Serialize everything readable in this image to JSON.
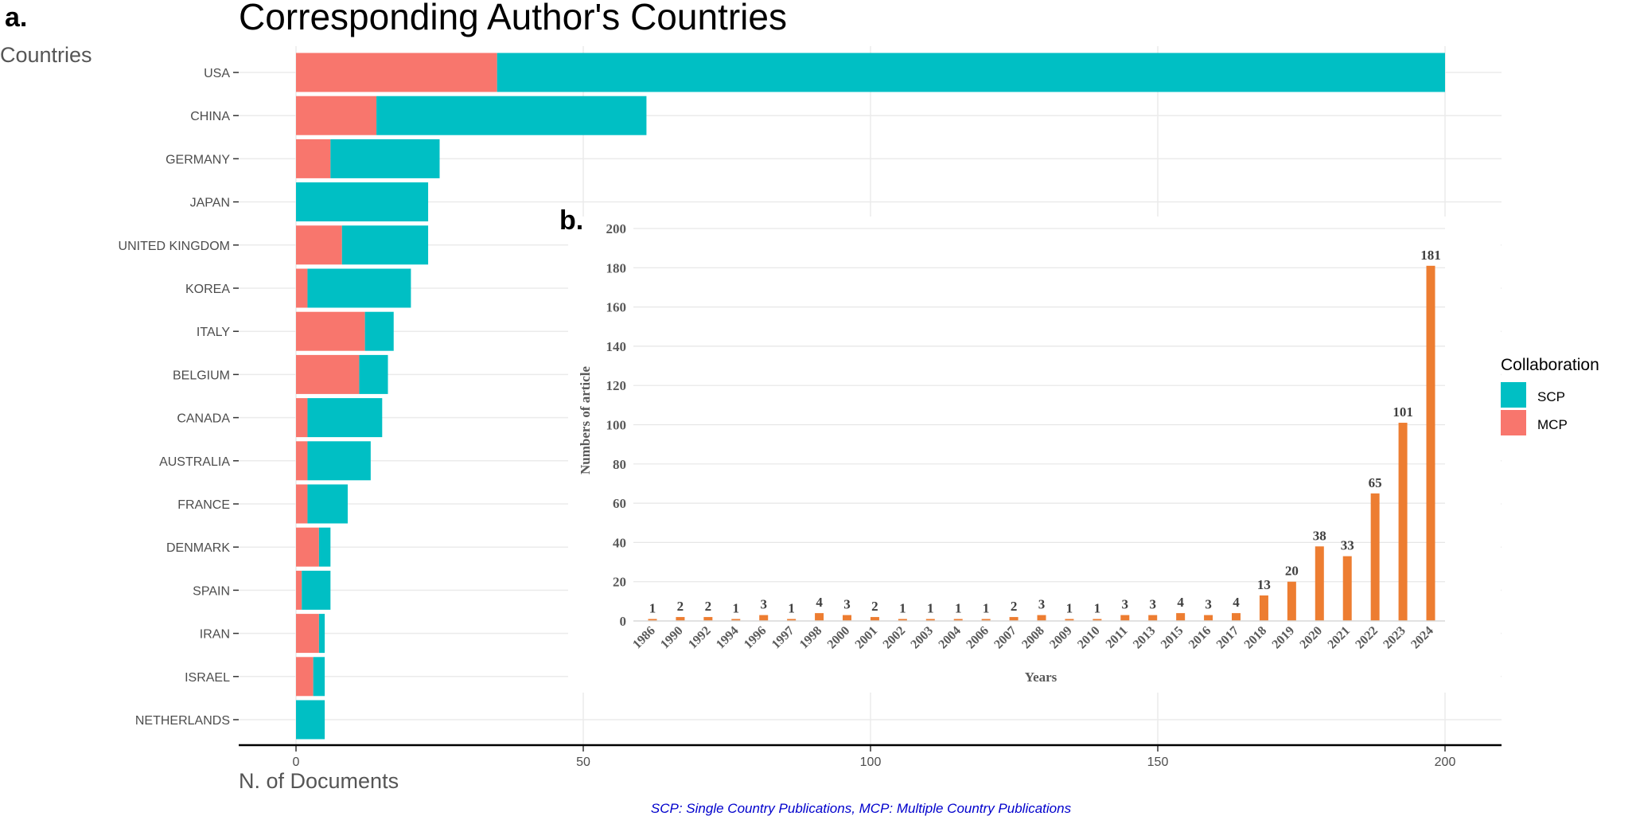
{
  "panel_a": {
    "label": "a.",
    "title": "Corresponding Author's Countries",
    "y_axis_title": "Countries",
    "x_axis_title": "N. of Documents",
    "caption": "SCP: Single Country Publications, MCP: Multiple Country Publications",
    "legend": {
      "title": "Collaboration",
      "items": [
        {
          "label": "SCP",
          "color": "#00BFC4"
        },
        {
          "label": "MCP",
          "color": "#F8766D"
        }
      ]
    }
  },
  "panel_b": {
    "label": "b.",
    "y_axis_title": "Numbers of article",
    "x_axis_title": "Years"
  },
  "chart_data": [
    {
      "type": "bar",
      "orientation": "horizontal",
      "stacked": true,
      "title": "Corresponding Author's Countries",
      "xlabel": "N. of Documents",
      "ylabel": "Countries",
      "xlim": [
        0,
        200
      ],
      "xticks": [
        0,
        50,
        100,
        150,
        200
      ],
      "grid": true,
      "legend_position": "right",
      "categories": [
        "USA",
        "CHINA",
        "GERMANY",
        "JAPAN",
        "UNITED KINGDOM",
        "KOREA",
        "ITALY",
        "BELGIUM",
        "CANADA",
        "AUSTRALIA",
        "FRANCE",
        "DENMARK",
        "SPAIN",
        "IRAN",
        "ISRAEL",
        "NETHERLANDS"
      ],
      "series": [
        {
          "name": "MCP",
          "color": "#F8766D",
          "values": [
            35,
            14,
            6,
            0,
            8,
            2,
            12,
            11,
            2,
            2,
            2,
            4,
            1,
            4,
            3,
            0
          ]
        },
        {
          "name": "SCP",
          "color": "#00BFC4",
          "values": [
            165,
            47,
            19,
            23,
            15,
            18,
            5,
            5,
            13,
            11,
            7,
            2,
            5,
            1,
            2,
            5
          ]
        }
      ]
    },
    {
      "type": "bar",
      "orientation": "vertical",
      "xlabel": "Years",
      "ylabel": "Numbers of article",
      "ylim": [
        0,
        200
      ],
      "yticks": [
        0,
        20,
        40,
        60,
        80,
        100,
        120,
        140,
        160,
        180,
        200
      ],
      "grid": true,
      "color": "#ED7D31",
      "categories": [
        "1986",
        "1990",
        "1992",
        "1994",
        "1996",
        "1997",
        "1998",
        "2000",
        "2001",
        "2002",
        "2003",
        "2004",
        "2006",
        "2007",
        "2008",
        "2009",
        "2010",
        "2011",
        "2013",
        "2015",
        "2016",
        "2017",
        "2018",
        "2019",
        "2020",
        "2021",
        "2022",
        "2023",
        "2024"
      ],
      "values": [
        1,
        2,
        2,
        1,
        3,
        1,
        4,
        3,
        2,
        1,
        1,
        1,
        1,
        2,
        3,
        1,
        1,
        3,
        3,
        4,
        3,
        4,
        13,
        20,
        38,
        33,
        65,
        101,
        181
      ]
    }
  ]
}
